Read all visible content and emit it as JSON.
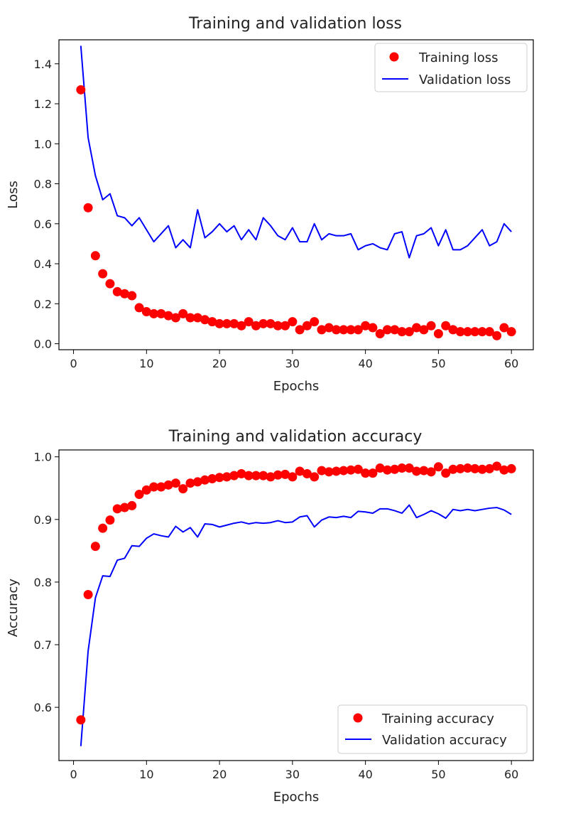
{
  "chart_data": [
    {
      "type": "line",
      "title": "Training and validation loss",
      "xlabel": "Epochs",
      "ylabel": "Loss",
      "xlim": [
        -2,
        63
      ],
      "ylim": [
        -0.03,
        1.52
      ],
      "xticks": [
        0,
        10,
        20,
        30,
        40,
        50,
        60
      ],
      "yticks": [
        0.0,
        0.2,
        0.4,
        0.6,
        0.8,
        1.0,
        1.2,
        1.4
      ],
      "ytick_labels": [
        "0.0",
        "0.2",
        "0.4",
        "0.6",
        "0.8",
        "1.0",
        "1.2",
        "1.4"
      ],
      "grid": false,
      "legend_position": "top-right",
      "x": [
        1,
        2,
        3,
        4,
        5,
        6,
        7,
        8,
        9,
        10,
        11,
        12,
        13,
        14,
        15,
        16,
        17,
        18,
        19,
        20,
        21,
        22,
        23,
        24,
        25,
        26,
        27,
        28,
        29,
        30,
        31,
        32,
        33,
        34,
        35,
        36,
        37,
        38,
        39,
        40,
        41,
        42,
        43,
        44,
        45,
        46,
        47,
        48,
        49,
        50,
        51,
        52,
        53,
        54,
        55,
        56,
        57,
        58,
        59,
        60
      ],
      "series": [
        {
          "name": "Training loss",
          "style": "scatter",
          "color": "#ff0000",
          "values": [
            1.27,
            0.68,
            0.44,
            0.35,
            0.3,
            0.26,
            0.25,
            0.24,
            0.18,
            0.16,
            0.15,
            0.15,
            0.14,
            0.13,
            0.15,
            0.13,
            0.13,
            0.12,
            0.11,
            0.1,
            0.1,
            0.1,
            0.09,
            0.11,
            0.09,
            0.1,
            0.1,
            0.09,
            0.09,
            0.11,
            0.07,
            0.09,
            0.11,
            0.07,
            0.08,
            0.07,
            0.07,
            0.07,
            0.07,
            0.09,
            0.08,
            0.05,
            0.07,
            0.07,
            0.06,
            0.06,
            0.08,
            0.07,
            0.09,
            0.05,
            0.09,
            0.07,
            0.06,
            0.06,
            0.06,
            0.06,
            0.06,
            0.04,
            0.08,
            0.06
          ]
        },
        {
          "name": "Validation loss",
          "style": "line",
          "color": "#0000ff",
          "values": [
            1.49,
            1.03,
            0.84,
            0.72,
            0.75,
            0.64,
            0.63,
            0.59,
            0.63,
            0.57,
            0.51,
            0.55,
            0.59,
            0.48,
            0.52,
            0.48,
            0.67,
            0.53,
            0.56,
            0.6,
            0.56,
            0.59,
            0.52,
            0.57,
            0.52,
            0.63,
            0.59,
            0.54,
            0.52,
            0.58,
            0.51,
            0.51,
            0.6,
            0.52,
            0.55,
            0.54,
            0.54,
            0.55,
            0.47,
            0.49,
            0.5,
            0.48,
            0.47,
            0.55,
            0.56,
            0.43,
            0.54,
            0.55,
            0.58,
            0.49,
            0.57,
            0.47,
            0.47,
            0.49,
            0.53,
            0.57,
            0.49,
            0.51,
            0.6,
            0.56
          ]
        }
      ]
    },
    {
      "type": "line",
      "title": "Training and validation accuracy",
      "xlabel": "Epochs",
      "ylabel": "Accuracy",
      "xlim": [
        -2,
        63
      ],
      "ylim": [
        0.515,
        1.011
      ],
      "xticks": [
        0,
        10,
        20,
        30,
        40,
        50,
        60
      ],
      "yticks": [
        0.6,
        0.7,
        0.8,
        0.9,
        1.0
      ],
      "ytick_labels": [
        "0.6",
        "0.7",
        "0.8",
        "0.9",
        "1.0"
      ],
      "grid": false,
      "legend_position": "bottom-right",
      "x": [
        1,
        2,
        3,
        4,
        5,
        6,
        7,
        8,
        9,
        10,
        11,
        12,
        13,
        14,
        15,
        16,
        17,
        18,
        19,
        20,
        21,
        22,
        23,
        24,
        25,
        26,
        27,
        28,
        29,
        30,
        31,
        32,
        33,
        34,
        35,
        36,
        37,
        38,
        39,
        40,
        41,
        42,
        43,
        44,
        45,
        46,
        47,
        48,
        49,
        50,
        51,
        52,
        53,
        54,
        55,
        56,
        57,
        58,
        59,
        60
      ],
      "series": [
        {
          "name": "Training accuracy",
          "style": "scatter",
          "color": "#ff0000",
          "values": [
            0.58,
            0.78,
            0.857,
            0.886,
            0.899,
            0.917,
            0.919,
            0.922,
            0.94,
            0.947,
            0.952,
            0.952,
            0.955,
            0.958,
            0.949,
            0.958,
            0.96,
            0.963,
            0.965,
            0.967,
            0.968,
            0.97,
            0.973,
            0.97,
            0.97,
            0.97,
            0.968,
            0.971,
            0.972,
            0.968,
            0.977,
            0.973,
            0.968,
            0.978,
            0.976,
            0.977,
            0.978,
            0.979,
            0.98,
            0.974,
            0.974,
            0.982,
            0.979,
            0.98,
            0.982,
            0.982,
            0.977,
            0.978,
            0.976,
            0.984,
            0.974,
            0.98,
            0.981,
            0.982,
            0.981,
            0.98,
            0.981,
            0.985,
            0.979,
            0.981
          ]
        },
        {
          "name": "Validation accuracy",
          "style": "line",
          "color": "#0000ff",
          "values": [
            0.538,
            0.69,
            0.775,
            0.81,
            0.809,
            0.835,
            0.838,
            0.858,
            0.857,
            0.87,
            0.877,
            0.874,
            0.872,
            0.889,
            0.88,
            0.887,
            0.872,
            0.893,
            0.892,
            0.888,
            0.891,
            0.894,
            0.896,
            0.893,
            0.895,
            0.894,
            0.895,
            0.898,
            0.895,
            0.896,
            0.904,
            0.906,
            0.888,
            0.899,
            0.904,
            0.903,
            0.905,
            0.903,
            0.913,
            0.912,
            0.91,
            0.917,
            0.917,
            0.914,
            0.91,
            0.923,
            0.903,
            0.908,
            0.914,
            0.909,
            0.902,
            0.916,
            0.914,
            0.916,
            0.914,
            0.916,
            0.918,
            0.919,
            0.915,
            0.908
          ]
        }
      ]
    }
  ]
}
